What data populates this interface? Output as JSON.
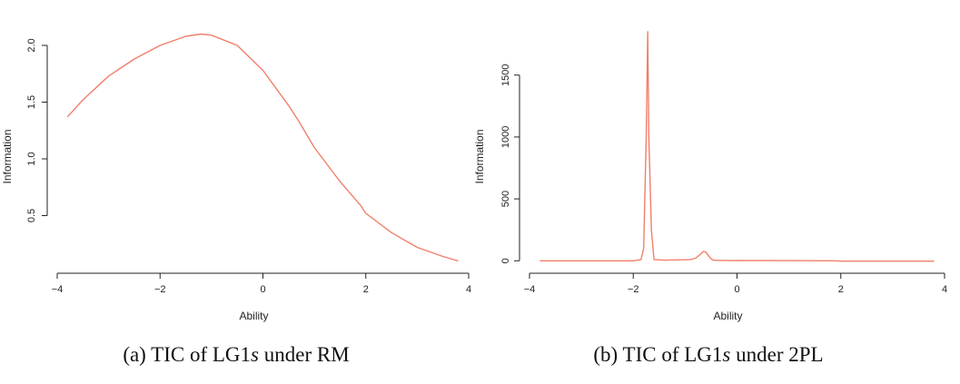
{
  "chart_data": [
    {
      "type": "line",
      "xlabel": "Ability",
      "ylabel": "Information",
      "xlim": [
        -4,
        4
      ],
      "ylim": [
        0.08,
        2.12
      ],
      "xticks": [
        -4,
        -2,
        0,
        2,
        4
      ],
      "xtick_labels": [
        "−4",
        "−2",
        "0",
        "2",
        "4"
      ],
      "yticks": [
        0.5,
        1.0,
        1.5,
        2.0
      ],
      "ytick_labels": [
        "0.5",
        "1.0",
        "1.5",
        "2.0"
      ],
      "grid": false,
      "series_color": "#f07f6b",
      "x": [
        -3.8,
        -3.5,
        -3.0,
        -2.5,
        -2.0,
        -1.5,
        -1.2,
        -1.0,
        -0.5,
        0.0,
        0.5,
        0.7,
        1.0,
        1.5,
        1.9,
        2.0,
        2.5,
        3.0,
        3.5,
        3.8
      ],
      "y": [
        1.37,
        1.52,
        1.73,
        1.88,
        2.0,
        2.08,
        2.1,
        2.09,
        2.0,
        1.78,
        1.47,
        1.33,
        1.1,
        0.8,
        0.59,
        0.52,
        0.35,
        0.22,
        0.14,
        0.1
      ]
    },
    {
      "type": "line",
      "xlabel": "Ability",
      "ylabel": "Information",
      "xlim": [
        -4,
        4
      ],
      "ylim": [
        -20,
        1850
      ],
      "xticks": [
        -4,
        -2,
        0,
        2,
        4
      ],
      "xtick_labels": [
        "−4",
        "−2",
        "0",
        "2",
        "4"
      ],
      "yticks": [
        0,
        500,
        1000,
        1500
      ],
      "ytick_labels": [
        "0",
        "500",
        "1000",
        "1500"
      ],
      "grid": false,
      "series_color": "#f07f6b",
      "x": [
        -3.8,
        -2.0,
        -1.85,
        -1.8,
        -1.75,
        -1.72,
        -1.7,
        -1.65,
        -1.6,
        -1.4,
        -0.9,
        -0.8,
        -0.7,
        -0.65,
        -0.6,
        -0.55,
        -0.5,
        -0.45,
        -0.3,
        0.0,
        1.0,
        1.9,
        2.0,
        3.8
      ],
      "y": [
        0,
        0,
        10,
        100,
        1000,
        1850,
        1000,
        250,
        10,
        5,
        10,
        20,
        55,
        75,
        70,
        40,
        15,
        5,
        3,
        2,
        1,
        0,
        -3,
        -3
      ]
    }
  ],
  "captions": [
    {
      "prefix": "(a) TIC of LG1",
      "italic": "s",
      "suffix": " under RM"
    },
    {
      "prefix": "(b) TIC of LG1",
      "italic": "s",
      "suffix": " under 2PL"
    }
  ]
}
